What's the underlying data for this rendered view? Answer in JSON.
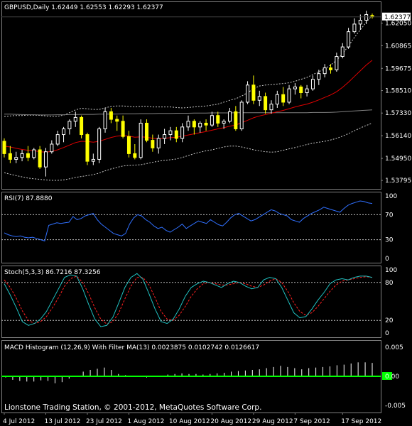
{
  "chart_data": [
    {
      "type": "candlestick",
      "title": "GBPUSD,Daily",
      "ohlc_header": [
        "1.62449",
        "1.62553",
        "1.62293",
        "1.62377"
      ],
      "ylim": [
        1.5365,
        1.6289
      ],
      "yticks": [
        "1.62050",
        "1.60865",
        "1.59675",
        "1.58510",
        "1.57330",
        "1.56140",
        "1.54950",
        "1.53795"
      ],
      "current_price": "1.62377",
      "x_ticks": [
        "4 Jul 2012",
        "13 Jul 2012",
        "23 Jul 2012",
        "1 Aug 2012",
        "10 Aug 2012",
        "20 Aug 2012",
        "29 Aug 2012",
        "7 Sep 2012",
        "17 Sep 2012"
      ],
      "candles": [
        [
          1.5585,
          1.56,
          1.55,
          1.552
        ],
        [
          1.552,
          1.556,
          1.547,
          1.549
        ],
        [
          1.549,
          1.553,
          1.547,
          1.55
        ],
        [
          1.55,
          1.554,
          1.548,
          1.552
        ],
        [
          1.552,
          1.556,
          1.548,
          1.55
        ],
        [
          1.55,
          1.555,
          1.549,
          1.554
        ],
        [
          1.554,
          1.556,
          1.544,
          1.545
        ],
        [
          1.545,
          1.555,
          1.54,
          1.553
        ],
        [
          1.553,
          1.559,
          1.552,
          1.557
        ],
        [
          1.557,
          1.564,
          1.556,
          1.562
        ],
        [
          1.562,
          1.566,
          1.558,
          1.565
        ],
        [
          1.565,
          1.57,
          1.562,
          1.569
        ],
        [
          1.569,
          1.574,
          1.566,
          1.571
        ],
        [
          1.571,
          1.572,
          1.56,
          1.562
        ],
        [
          1.562,
          1.563,
          1.546,
          1.548
        ],
        [
          1.548,
          1.552,
          1.546,
          1.549
        ],
        [
          1.549,
          1.566,
          1.547,
          1.565
        ],
        [
          1.565,
          1.576,
          1.563,
          1.574
        ],
        [
          1.574,
          1.576,
          1.568,
          1.57
        ],
        [
          1.57,
          1.572,
          1.564,
          1.569
        ],
        [
          1.569,
          1.572,
          1.56,
          1.561
        ],
        [
          1.561,
          1.564,
          1.55,
          1.552
        ],
        [
          1.552,
          1.557,
          1.549,
          1.55
        ],
        [
          1.55,
          1.57,
          1.549,
          1.568
        ],
        [
          1.568,
          1.57,
          1.558,
          1.559
        ],
        [
          1.559,
          1.562,
          1.553,
          1.555
        ],
        [
          1.555,
          1.562,
          1.552,
          1.56
        ],
        [
          1.56,
          1.565,
          1.557,
          1.562
        ],
        [
          1.562,
          1.566,
          1.559,
          1.564
        ],
        [
          1.564,
          1.566,
          1.558,
          1.56
        ],
        [
          1.56,
          1.568,
          1.558,
          1.566
        ],
        [
          1.566,
          1.572,
          1.564,
          1.569
        ],
        [
          1.569,
          1.57,
          1.562,
          1.566
        ],
        [
          1.566,
          1.569,
          1.563,
          1.568
        ],
        [
          1.568,
          1.57,
          1.564,
          1.567
        ],
        [
          1.567,
          1.574,
          1.566,
          1.572
        ],
        [
          1.572,
          1.574,
          1.566,
          1.568
        ],
        [
          1.568,
          1.57,
          1.565,
          1.569
        ],
        [
          1.569,
          1.576,
          1.568,
          1.574
        ],
        [
          1.574,
          1.577,
          1.564,
          1.565
        ],
        [
          1.565,
          1.58,
          1.564,
          1.579
        ],
        [
          1.579,
          1.59,
          1.578,
          1.588
        ],
        [
          1.588,
          1.593,
          1.578,
          1.58
        ],
        [
          1.58,
          1.585,
          1.577,
          1.582
        ],
        [
          1.582,
          1.584,
          1.573,
          1.575
        ],
        [
          1.575,
          1.58,
          1.573,
          1.578
        ],
        [
          1.578,
          1.585,
          1.576,
          1.583
        ],
        [
          1.583,
          1.587,
          1.577,
          1.579
        ],
        [
          1.579,
          1.588,
          1.578,
          1.586
        ],
        [
          1.586,
          1.589,
          1.583,
          1.587
        ],
        [
          1.587,
          1.588,
          1.581,
          1.584
        ],
        [
          1.584,
          1.588,
          1.582,
          1.586
        ],
        [
          1.586,
          1.593,
          1.585,
          1.591
        ],
        [
          1.591,
          1.596,
          1.588,
          1.594
        ],
        [
          1.594,
          1.599,
          1.592,
          1.597
        ],
        [
          1.597,
          1.599,
          1.594,
          1.596
        ],
        [
          1.596,
          1.605,
          1.595,
          1.603
        ],
        [
          1.603,
          1.61,
          1.602,
          1.608
        ],
        [
          1.608,
          1.618,
          1.607,
          1.616
        ],
        [
          1.616,
          1.623,
          1.615,
          1.62
        ],
        [
          1.62,
          1.625,
          1.617,
          1.622
        ],
        [
          1.622,
          1.627,
          1.62,
          1.625
        ],
        [
          1.6245,
          1.6255,
          1.6229,
          1.6238
        ]
      ],
      "ma": [
        1.556,
        1.5555,
        1.5548,
        1.5542,
        1.5538,
        1.5536,
        1.553,
        1.5528,
        1.5532,
        1.554,
        1.5552,
        1.5565,
        1.5578,
        1.5585,
        1.5584,
        1.558,
        1.5585,
        1.5595,
        1.5605,
        1.5612,
        1.5615,
        1.5612,
        1.5606,
        1.5608,
        1.5606,
        1.56,
        1.5598,
        1.56,
        1.5604,
        1.5606,
        1.5611,
        1.5618,
        1.5624,
        1.563,
        1.5636,
        1.5643,
        1.565,
        1.5656,
        1.5664,
        1.567,
        1.5682,
        1.5695,
        1.5708,
        1.5718,
        1.5725,
        1.5732,
        1.574,
        1.5747,
        1.5756,
        1.5765,
        1.5773,
        1.578,
        1.579,
        1.5802,
        1.5815,
        1.5828,
        1.5845,
        1.5868,
        1.5895,
        1.5925,
        1.5955,
        1.5985,
        1.601
      ],
      "bb_mid": [
        1.5727,
        1.5727,
        1.5726,
        1.5725,
        1.5724,
        1.5724,
        1.5723,
        1.5723,
        1.5723,
        1.5724,
        1.5724,
        1.5725,
        1.5725,
        1.5726,
        1.5726,
        1.5726,
        1.5727,
        1.5727,
        1.5728,
        1.5728,
        1.5729,
        1.5729,
        1.5729,
        1.573,
        1.573,
        1.573,
        1.5731,
        1.5731,
        1.5731,
        1.5732,
        1.5732,
        1.5732,
        1.5733,
        1.5733,
        1.5733,
        1.5734,
        1.5734,
        1.5734,
        1.5734,
        1.5735,
        1.5735,
        1.5735,
        1.5735,
        1.5735,
        1.5735,
        1.5735,
        1.5735,
        1.5735,
        1.5735,
        1.5735,
        1.5735,
        1.5735,
        1.5736,
        1.5736,
        1.5736,
        1.5737,
        1.5738,
        1.574,
        1.5742,
        1.5744,
        1.5746,
        1.5748,
        1.575
      ],
      "bb_upper": [
        1.5715,
        1.5718,
        1.572,
        1.572,
        1.5722,
        1.5722,
        1.5721,
        1.5718,
        1.5715,
        1.5716,
        1.5722,
        1.5735,
        1.575,
        1.5758,
        1.5755,
        1.5752,
        1.5752,
        1.576,
        1.5768,
        1.577,
        1.577,
        1.5768,
        1.5765,
        1.5768,
        1.5768,
        1.5765,
        1.5765,
        1.5765,
        1.5765,
        1.5762,
        1.576,
        1.5762,
        1.5765,
        1.5768,
        1.577,
        1.5775,
        1.578,
        1.579,
        1.58,
        1.5808,
        1.5822,
        1.584,
        1.586,
        1.5875,
        1.588,
        1.5882,
        1.5885,
        1.5888,
        1.5892,
        1.59,
        1.591,
        1.592,
        1.5935,
        1.595,
        1.5965,
        1.5985,
        1.601,
        1.6045,
        1.6085,
        1.613,
        1.617,
        1.621,
        1.6245
      ],
      "bb_lower": [
        1.542,
        1.5412,
        1.5405,
        1.5398,
        1.5392,
        1.5388,
        1.5385,
        1.5382,
        1.538,
        1.538,
        1.5382,
        1.5388,
        1.5395,
        1.54,
        1.5405,
        1.541,
        1.5418,
        1.543,
        1.544,
        1.5448,
        1.5455,
        1.5458,
        1.546,
        1.5462,
        1.5468,
        1.5475,
        1.548,
        1.5485,
        1.5488,
        1.5492,
        1.55,
        1.551,
        1.552,
        1.5528,
        1.5535,
        1.554,
        1.5548,
        1.5555,
        1.556,
        1.556,
        1.5555,
        1.5548,
        1.554,
        1.5535,
        1.553,
        1.5528,
        1.553,
        1.5538,
        1.5545,
        1.5552,
        1.556,
        1.5568,
        1.5575,
        1.558,
        1.5585,
        1.5592,
        1.56,
        1.5612,
        1.5625,
        1.564,
        1.5655,
        1.5668,
        1.568
      ]
    },
    {
      "type": "line",
      "title": "RSI(7) 87.8880",
      "ylim": [
        0,
        100
      ],
      "yticks": [
        "100",
        "70",
        "30",
        "0"
      ],
      "levels": [
        70,
        30
      ],
      "values": [
        41,
        38,
        36,
        35,
        36,
        34,
        33,
        34,
        32,
        30,
        28,
        53,
        55,
        57,
        56,
        57,
        58,
        67,
        62,
        64,
        68,
        70,
        72,
        62,
        55,
        50,
        45,
        40,
        38,
        36,
        40,
        55,
        65,
        70,
        68,
        62,
        58,
        52,
        48,
        50,
        45,
        42,
        46,
        50,
        55,
        48,
        52,
        56,
        60,
        58,
        56,
        62,
        58,
        54,
        52,
        58,
        65,
        70,
        72,
        68,
        64,
        60,
        62,
        66,
        70,
        74,
        78,
        76,
        72,
        70,
        68,
        62,
        60,
        58,
        64,
        68,
        72,
        75,
        78,
        82,
        80,
        78,
        76,
        74,
        80,
        85,
        88,
        90,
        92,
        91,
        89,
        88
      ]
    },
    {
      "type": "line",
      "title": "Stoch(5,3,3) 86.7216 87.3256",
      "ylim": [
        0,
        100
      ],
      "yticks": [
        "100",
        "80",
        "20",
        "0"
      ],
      "levels": [
        80,
        20
      ],
      "series": [
        {
          "name": "86.7216",
          "values": [
            78,
            60,
            40,
            18,
            12,
            15,
            22,
            34,
            52,
            70,
            88,
            92,
            90,
            70,
            45,
            22,
            10,
            12,
            25,
            48,
            72,
            88,
            94,
            85,
            62,
            38,
            18,
            15,
            22,
            38,
            58,
            72,
            78,
            82,
            80,
            76,
            72,
            78,
            82,
            80,
            74,
            70,
            72,
            84,
            88,
            86,
            72,
            52,
            32,
            24,
            26,
            38,
            52,
            64,
            78,
            84,
            86,
            84,
            88,
            90,
            90,
            88
          ]
        },
        {
          "name": "87.3256",
          "values": [
            84,
            72,
            55,
            35,
            20,
            15,
            18,
            26,
            40,
            56,
            74,
            86,
            90,
            80,
            62,
            40,
            22,
            14,
            18,
            32,
            54,
            74,
            88,
            88,
            76,
            56,
            34,
            22,
            20,
            28,
            42,
            58,
            70,
            78,
            80,
            78,
            76,
            76,
            78,
            80,
            78,
            74,
            72,
            76,
            82,
            86,
            80,
            66,
            48,
            34,
            28,
            32,
            42,
            54,
            66,
            76,
            82,
            84,
            86,
            88,
            89,
            88
          ]
        }
      ]
    },
    {
      "type": "bar",
      "title": "MACD Histogram (12,26,9) With Filter MA(13) 0.0023875 0.0102742 0.0126617",
      "ylim": [
        -0.005,
        0.005
      ],
      "yticks": [
        "0.005",
        "0.00",
        "-0.005"
      ],
      "values": [
        -0.0002,
        -0.0006,
        -0.0008,
        -0.0009,
        -0.0009,
        -0.0007,
        -0.0008,
        -0.0012,
        -0.001,
        -0.0004,
        0.0001,
        0.0008,
        0.0011,
        0.0013,
        0.0015,
        0.0011,
        0.0004,
        0.0002,
        0.0001,
        0.0,
        -0.0002,
        -0.0001,
        0.0001,
        0.0003,
        0.0004,
        0.0005,
        0.0004,
        0.0004,
        0.0003,
        0.0004,
        0.0005,
        0.0006,
        0.0008,
        0.0009,
        0.001,
        0.0011,
        0.0012,
        0.0014,
        0.0016,
        0.0018,
        0.0016,
        0.0014,
        0.0012,
        0.0014,
        0.0015,
        0.0016,
        0.0017,
        0.0019,
        0.002,
        0.0022,
        0.0024,
        0.0024,
        0.0023
      ],
      "filter_line": 0.0
    }
  ],
  "footer": "Lionstone Trading Station, © 2001-2012, MetaQuotes Software Corp."
}
